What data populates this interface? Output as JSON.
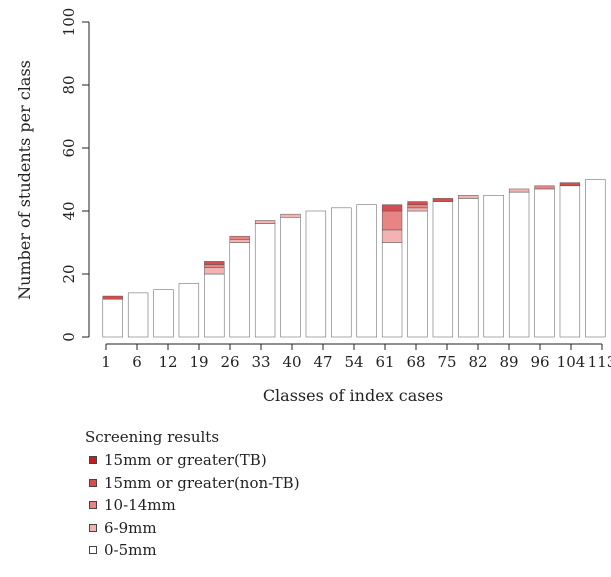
{
  "chart_data": {
    "type": "bar",
    "stacked": true,
    "title": "",
    "xlabel": "Classes of index cases",
    "ylabel": "Number of students per class",
    "ylim": [
      0,
      100
    ],
    "yticks": [
      0,
      20,
      40,
      60,
      80,
      100
    ],
    "xticks": [
      "1",
      "6",
      "12",
      "19",
      "26",
      "33",
      "40",
      "47",
      "54",
      "61",
      "68",
      "75",
      "82",
      "89",
      "96",
      "104",
      "113"
    ],
    "grid": false,
    "legend_position": "bottom-left",
    "legend_title": "Screening results",
    "series": [
      {
        "name": "0-5mm",
        "color": "#ffffff",
        "values": [
          12,
          14,
          15,
          17,
          20,
          30,
          36,
          38,
          40,
          41,
          42,
          30,
          40,
          43,
          44,
          45,
          46,
          47,
          48,
          50
        ]
      },
      {
        "name": "6-9mm",
        "color": "#f3b3b3",
        "values": [
          0,
          0,
          0,
          0,
          2,
          1,
          1,
          1,
          0,
          0,
          0,
          4,
          1,
          0,
          1,
          0,
          1,
          0,
          0,
          0
        ]
      },
      {
        "name": "10-14mm",
        "color": "#e88484",
        "values": [
          0,
          0,
          0,
          0,
          1,
          1,
          0,
          0,
          0,
          0,
          0,
          6,
          1,
          0,
          0,
          0,
          0,
          1,
          0,
          0
        ]
      },
      {
        "name": "15mm or greater(non-TB)",
        "color": "#d94c4c",
        "values": [
          1,
          0,
          0,
          0,
          1,
          0,
          0,
          0,
          0,
          0,
          0,
          2,
          1,
          1,
          0,
          0,
          0,
          0,
          1,
          0
        ]
      },
      {
        "name": "15mm or greater(TB)",
        "color": "#c41e1e",
        "values": [
          0,
          0,
          0,
          0,
          0,
          0,
          0,
          0,
          0,
          0,
          0,
          0,
          0,
          0,
          0,
          0,
          0,
          0,
          0,
          0
        ]
      }
    ]
  }
}
